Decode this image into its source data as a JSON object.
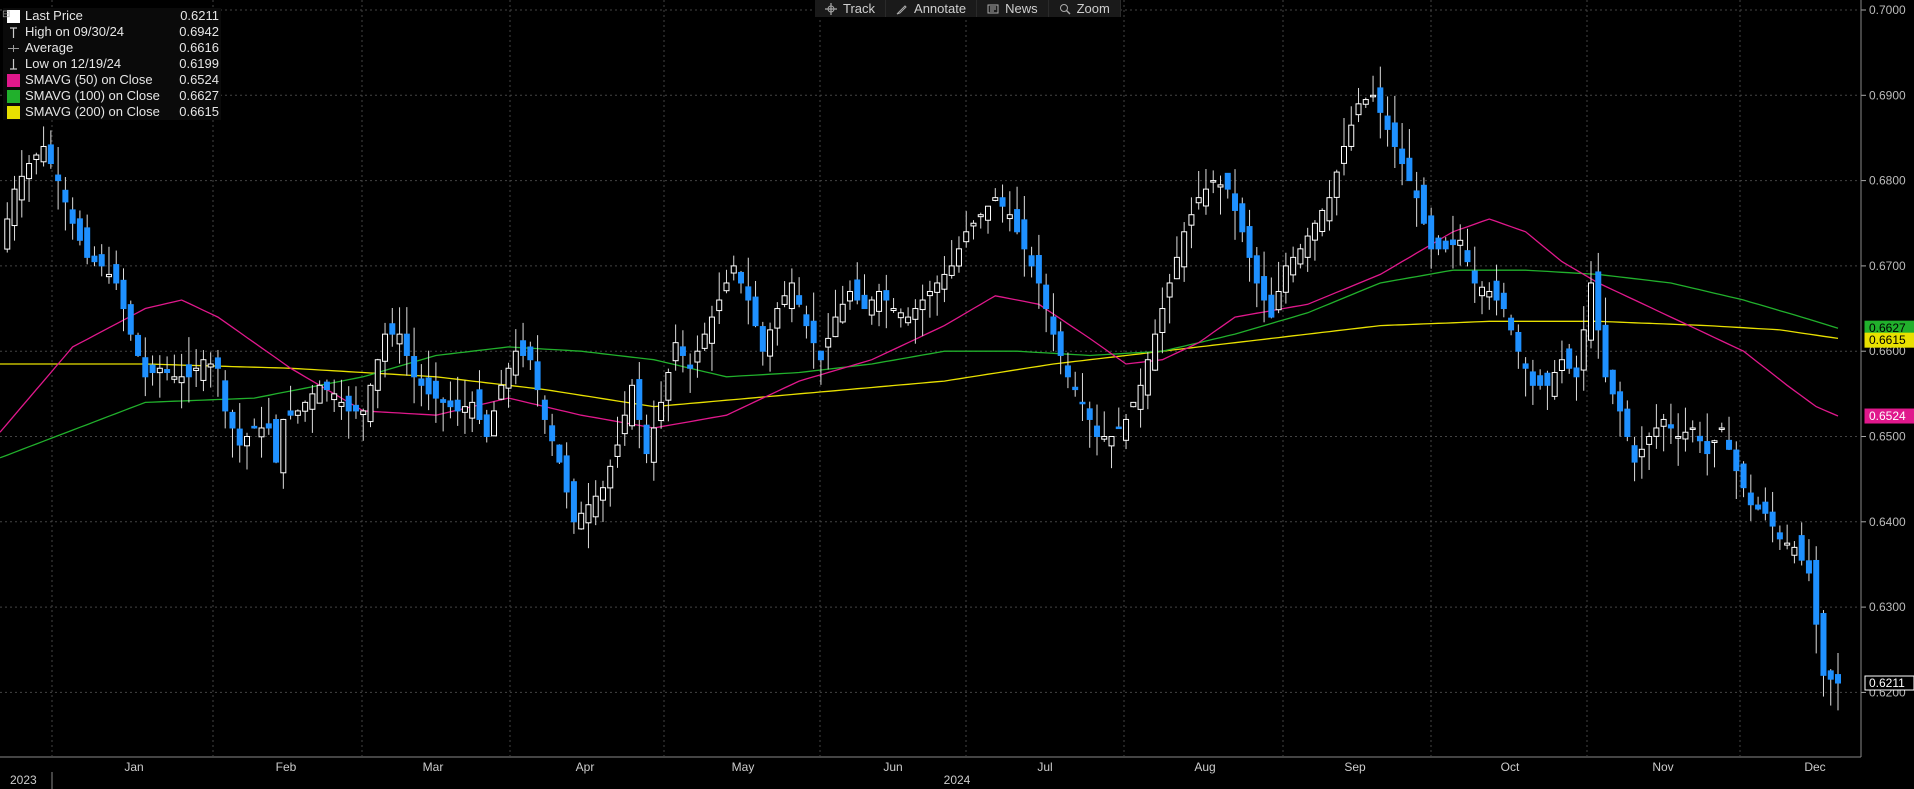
{
  "toolbar": {
    "items": [
      {
        "label": "Track",
        "icon": "crosshair-icon"
      },
      {
        "label": "Annotate",
        "icon": "pencil-icon"
      },
      {
        "label": "News",
        "icon": "newspaper-icon"
      },
      {
        "label": "Zoom",
        "icon": "magnifier-icon"
      }
    ]
  },
  "legend": {
    "items": [
      {
        "label": "Last Price",
        "value": "0.6211",
        "mark": "white-square"
      },
      {
        "label": "High on 09/30/24",
        "value": "0.6942",
        "mark": "high-marker"
      },
      {
        "label": "Average",
        "value": "0.6616",
        "mark": "average-marker"
      },
      {
        "label": "Low on 12/19/24",
        "value": "0.6199",
        "mark": "low-marker"
      },
      {
        "label": "SMAVG (50)  on Close",
        "value": "0.6524",
        "mark": "#e0188c"
      },
      {
        "label": "SMAVG (100)  on Close",
        "value": "0.6627",
        "mark": "#21b02c"
      },
      {
        "label": "SMAVG (200)  on Close",
        "value": "0.6615",
        "mark": "#e8e000"
      }
    ]
  },
  "colors": {
    "background": "#000000",
    "up_candle": "#ffffff",
    "down_candle": "#1e90ff",
    "sma50": "#e0188c",
    "sma100": "#21b02c",
    "sma200": "#e8e000",
    "grid": "#444444"
  },
  "chart_data": {
    "type": "candlestick",
    "ylim": [
      0.615,
      0.7
    ],
    "yticks": [
      "0.7000",
      "0.6900",
      "0.6800",
      "0.6700",
      "0.6600",
      "0.6500",
      "0.6400",
      "0.6300",
      "0.6200"
    ],
    "ytick_values": [
      0.7,
      0.69,
      0.68,
      0.67,
      0.66,
      0.65,
      0.64,
      0.63,
      0.62
    ],
    "x_tick_labels": [
      "Jan",
      "Feb",
      "Mar",
      "Apr",
      "May",
      "Jun",
      "Jul",
      "Aug",
      "Sep",
      "Oct",
      "Nov",
      "Dec"
    ],
    "year_labels": [
      "2023",
      "2024"
    ],
    "grid": true,
    "close_path": [
      [
        0,
        0.672
      ],
      [
        2,
        0.679
      ],
      [
        4,
        0.682
      ],
      [
        6,
        0.684
      ],
      [
        8,
        0.68
      ],
      [
        10,
        0.675
      ],
      [
        12,
        0.671
      ],
      [
        14,
        0.67
      ],
      [
        16,
        0.668
      ],
      [
        18,
        0.662
      ],
      [
        20,
        0.657
      ],
      [
        22,
        0.658
      ],
      [
        24,
        0.657
      ],
      [
        26,
        0.657
      ],
      [
        28,
        0.659
      ],
      [
        30,
        0.658
      ],
      [
        31,
        0.653
      ],
      [
        33,
        0.649
      ],
      [
        35,
        0.651
      ],
      [
        37,
        0.651
      ],
      [
        38,
        0.647
      ],
      [
        39,
        0.652
      ],
      [
        41,
        0.653
      ],
      [
        44,
        0.656
      ],
      [
        46,
        0.655
      ],
      [
        48,
        0.653
      ],
      [
        50,
        0.653
      ],
      [
        53,
        0.662
      ],
      [
        55,
        0.662
      ],
      [
        57,
        0.657
      ],
      [
        59,
        0.655
      ],
      [
        61,
        0.654
      ],
      [
        63,
        0.653
      ],
      [
        65,
        0.654
      ],
      [
        67,
        0.65
      ],
      [
        69,
        0.656
      ],
      [
        71,
        0.66
      ],
      [
        73,
        0.659
      ],
      [
        75,
        0.652
      ],
      [
        77,
        0.647
      ],
      [
        79,
        0.64
      ],
      [
        81,
        0.642
      ],
      [
        83,
        0.644
      ],
      [
        85,
        0.649
      ],
      [
        87,
        0.656
      ],
      [
        89,
        0.648
      ],
      [
        91,
        0.654
      ],
      [
        93,
        0.661
      ],
      [
        95,
        0.658
      ],
      [
        97,
        0.662
      ],
      [
        99,
        0.666
      ],
      [
        101,
        0.67
      ],
      [
        103,
        0.666
      ],
      [
        105,
        0.66
      ],
      [
        107,
        0.665
      ],
      [
        109,
        0.668
      ],
      [
        111,
        0.663
      ],
      [
        113,
        0.659
      ],
      [
        115,
        0.664
      ],
      [
        117,
        0.667
      ],
      [
        119,
        0.665
      ],
      [
        121,
        0.667
      ],
      [
        123,
        0.665
      ],
      [
        125,
        0.664
      ],
      [
        127,
        0.666
      ],
      [
        129,
        0.668
      ],
      [
        131,
        0.67
      ],
      [
        133,
        0.674
      ],
      [
        135,
        0.676
      ],
      [
        137,
        0.678
      ],
      [
        139,
        0.676
      ],
      [
        141,
        0.672
      ],
      [
        143,
        0.668
      ],
      [
        145,
        0.662
      ],
      [
        147,
        0.657
      ],
      [
        149,
        0.654
      ],
      [
        151,
        0.65
      ],
      [
        153,
        0.65
      ],
      [
        155,
        0.652
      ],
      [
        157,
        0.656
      ],
      [
        159,
        0.662
      ],
      [
        161,
        0.668
      ],
      [
        163,
        0.674
      ],
      [
        165,
        0.678
      ],
      [
        167,
        0.68
      ],
      [
        169,
        0.679
      ],
      [
        171,
        0.674
      ],
      [
        173,
        0.668
      ],
      [
        175,
        0.664
      ],
      [
        177,
        0.67
      ],
      [
        179,
        0.672
      ],
      [
        181,
        0.675
      ],
      [
        183,
        0.678
      ],
      [
        185,
        0.684
      ],
      [
        187,
        0.689
      ],
      [
        189,
        0.69
      ],
      [
        191,
        0.686
      ],
      [
        193,
        0.682
      ],
      [
        195,
        0.678
      ],
      [
        197,
        0.672
      ],
      [
        199,
        0.672
      ],
      [
        201,
        0.673
      ],
      [
        203,
        0.668
      ],
      [
        205,
        0.667
      ],
      [
        207,
        0.665
      ],
      [
        209,
        0.66
      ],
      [
        211,
        0.656
      ],
      [
        213,
        0.656
      ],
      [
        215,
        0.659
      ],
      [
        217,
        0.657
      ],
      [
        219,
        0.668
      ],
      [
        221,
        0.657
      ],
      [
        223,
        0.653
      ],
      [
        225,
        0.647
      ],
      [
        227,
        0.65
      ],
      [
        229,
        0.652
      ],
      [
        231,
        0.65
      ],
      [
        233,
        0.651
      ],
      [
        235,
        0.648
      ],
      [
        237,
        0.651
      ],
      [
        239,
        0.646
      ],
      [
        241,
        0.642
      ],
      [
        243,
        0.641
      ],
      [
        245,
        0.638
      ],
      [
        247,
        0.637
      ],
      [
        249,
        0.634
      ],
      [
        251,
        0.622
      ],
      [
        253,
        0.6211
      ]
    ],
    "sma50": [
      [
        0,
        0.6505
      ],
      [
        10,
        0.6605
      ],
      [
        20,
        0.665
      ],
      [
        25,
        0.666
      ],
      [
        30,
        0.664
      ],
      [
        40,
        0.658
      ],
      [
        50,
        0.653
      ],
      [
        60,
        0.6525
      ],
      [
        70,
        0.6545
      ],
      [
        80,
        0.6525
      ],
      [
        90,
        0.651
      ],
      [
        100,
        0.6525
      ],
      [
        110,
        0.6565
      ],
      [
        120,
        0.659
      ],
      [
        130,
        0.663
      ],
      [
        137,
        0.6665
      ],
      [
        143,
        0.6655
      ],
      [
        150,
        0.6615
      ],
      [
        155,
        0.6585
      ],
      [
        160,
        0.659
      ],
      [
        165,
        0.661
      ],
      [
        170,
        0.664
      ],
      [
        180,
        0.6655
      ],
      [
        190,
        0.669
      ],
      [
        200,
        0.674
      ],
      [
        205,
        0.6755
      ],
      [
        210,
        0.674
      ],
      [
        215,
        0.6705
      ],
      [
        220,
        0.668
      ],
      [
        230,
        0.664
      ],
      [
        240,
        0.66
      ],
      [
        246,
        0.656
      ],
      [
        250,
        0.6535
      ],
      [
        253,
        0.6524
      ]
    ],
    "sma100": [
      [
        0,
        0.6475
      ],
      [
        20,
        0.654
      ],
      [
        35,
        0.6545
      ],
      [
        50,
        0.657
      ],
      [
        60,
        0.6595
      ],
      [
        70,
        0.6605
      ],
      [
        80,
        0.66
      ],
      [
        90,
        0.659
      ],
      [
        100,
        0.657
      ],
      [
        110,
        0.6575
      ],
      [
        120,
        0.6585
      ],
      [
        130,
        0.66
      ],
      [
        140,
        0.66
      ],
      [
        150,
        0.6595
      ],
      [
        160,
        0.66
      ],
      [
        170,
        0.662
      ],
      [
        180,
        0.6645
      ],
      [
        190,
        0.668
      ],
      [
        200,
        0.6695
      ],
      [
        210,
        0.6695
      ],
      [
        220,
        0.669
      ],
      [
        230,
        0.668
      ],
      [
        240,
        0.666
      ],
      [
        248,
        0.664
      ],
      [
        253,
        0.6627
      ]
    ],
    "sma200": [
      [
        0,
        0.6585
      ],
      [
        20,
        0.6585
      ],
      [
        40,
        0.658
      ],
      [
        60,
        0.657
      ],
      [
        75,
        0.6555
      ],
      [
        90,
        0.6535
      ],
      [
        110,
        0.655
      ],
      [
        130,
        0.6565
      ],
      [
        145,
        0.6585
      ],
      [
        160,
        0.66
      ],
      [
        175,
        0.6615
      ],
      [
        190,
        0.663
      ],
      [
        205,
        0.6635
      ],
      [
        220,
        0.6635
      ],
      [
        235,
        0.663
      ],
      [
        245,
        0.6625
      ],
      [
        253,
        0.6615
      ]
    ],
    "last_price": "0.6211",
    "high": "0.6942",
    "low": "0.6199",
    "average": "0.6616",
    "badges": [
      {
        "value": "0.6627",
        "series": "sma100"
      },
      {
        "value": "0.6615",
        "series": "sma200"
      },
      {
        "value": "0.6524",
        "series": "sma50"
      },
      {
        "value": "0.6211",
        "series": "last"
      }
    ]
  }
}
